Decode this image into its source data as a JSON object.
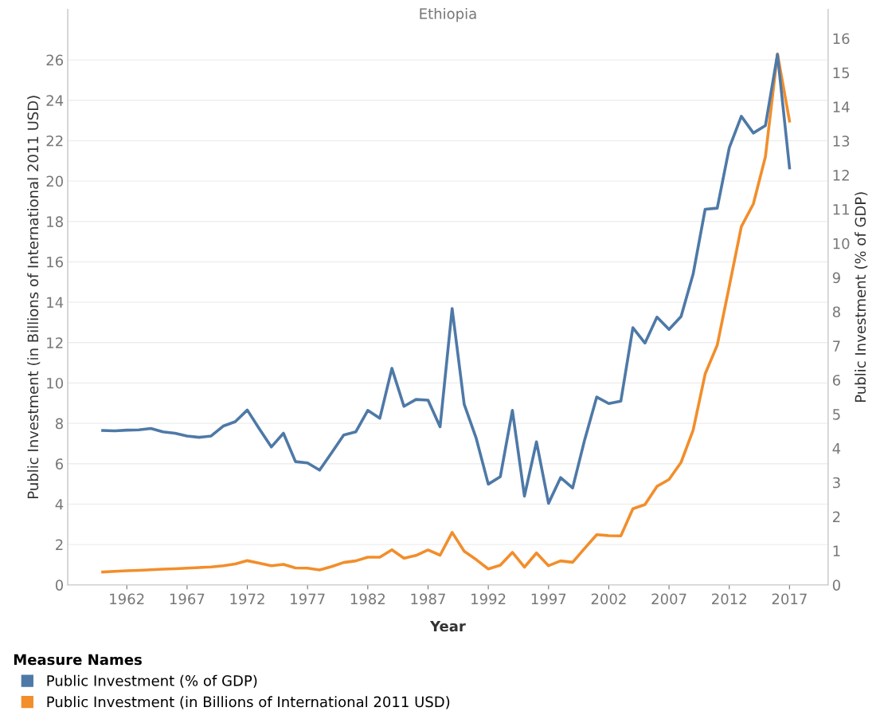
{
  "chart_data": {
    "type": "line",
    "title": "Ethiopia",
    "xlabel": "Year",
    "ylabel": "Public Investment (in Billions of International 2011 USD)",
    "y2label": "Public Investment (% of GDP)",
    "legend_title": "Measure Names",
    "legend": "bottom",
    "grid": "y",
    "line_style": "solid",
    "marker": "none",
    "x": [
      1960,
      1961,
      1962,
      1963,
      1964,
      1965,
      1966,
      1967,
      1968,
      1969,
      1970,
      1971,
      1972,
      1973,
      1974,
      1975,
      1976,
      1977,
      1978,
      1979,
      1980,
      1981,
      1982,
      1983,
      1984,
      1985,
      1986,
      1987,
      1988,
      1989,
      1990,
      1991,
      1992,
      1993,
      1994,
      1995,
      1996,
      1997,
      1998,
      1999,
      2000,
      2001,
      2002,
      2003,
      2004,
      2005,
      2006,
      2007,
      2008,
      2009,
      2010,
      2011,
      2012,
      2013,
      2014,
      2015,
      2016,
      2017
    ],
    "series": [
      {
        "name": "Public Investment (% of GDP)",
        "color": "#4e79a7",
        "axis": "y2",
        "values": [
          4.52,
          4.51,
          4.53,
          4.54,
          4.58,
          4.48,
          4.44,
          4.36,
          4.32,
          4.36,
          4.65,
          4.78,
          5.12,
          4.57,
          4.04,
          4.44,
          3.61,
          3.57,
          3.36,
          3.87,
          4.39,
          4.48,
          5.11,
          4.88,
          6.34,
          5.23,
          5.43,
          5.41,
          4.63,
          8.09,
          5.29,
          4.29,
          2.95,
          3.17,
          5.11,
          2.6,
          4.19,
          2.39,
          3.14,
          2.84,
          4.25,
          5.5,
          5.31,
          5.38,
          7.53,
          7.08,
          7.84,
          7.48,
          7.86,
          9.1,
          11.0,
          11.03,
          12.8,
          13.72,
          13.23,
          13.45,
          15.53,
          12.21
        ]
      },
      {
        "name": "Public Investment (in Billions of International 2011 USD)",
        "color": "#f28e2b",
        "axis": "y",
        "values": [
          0.64,
          0.67,
          0.7,
          0.72,
          0.75,
          0.78,
          0.8,
          0.83,
          0.86,
          0.89,
          0.95,
          1.04,
          1.2,
          1.08,
          0.95,
          1.02,
          0.84,
          0.83,
          0.74,
          0.91,
          1.11,
          1.19,
          1.37,
          1.37,
          1.74,
          1.32,
          1.46,
          1.73,
          1.47,
          2.6,
          1.67,
          1.25,
          0.79,
          0.98,
          1.61,
          0.88,
          1.58,
          0.95,
          1.19,
          1.12,
          1.81,
          2.49,
          2.44,
          2.43,
          3.77,
          3.98,
          4.88,
          5.22,
          6.07,
          7.66,
          10.45,
          11.87,
          14.79,
          17.74,
          18.87,
          21.21,
          26.3,
          22.97
        ]
      }
    ],
    "xlim": [
      1957.1,
      2020.2
    ],
    "xticks": [
      1962,
      1967,
      1972,
      1977,
      1982,
      1987,
      1992,
      1997,
      2002,
      2007,
      2012,
      2017
    ],
    "ylim": [
      0,
      28.5
    ],
    "yticks": [
      0,
      2,
      4,
      6,
      8,
      10,
      12,
      14,
      16,
      18,
      20,
      22,
      24,
      26
    ],
    "y2lim": [
      0,
      16.85
    ],
    "y2ticks": [
      0,
      1,
      2,
      3,
      4,
      5,
      6,
      7,
      8,
      9,
      10,
      11,
      12,
      13,
      14,
      15,
      16
    ]
  }
}
